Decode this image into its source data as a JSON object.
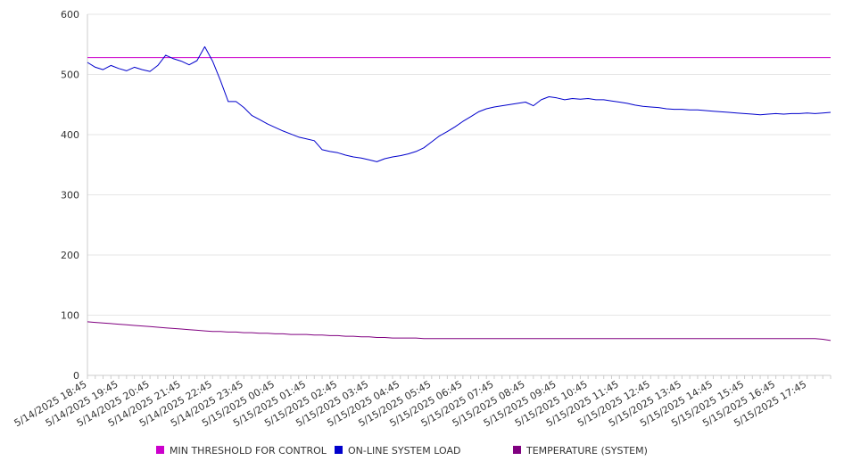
{
  "chart_data": {
    "type": "line",
    "ylim": [
      0,
      600
    ],
    "yticks": [
      0,
      100,
      200,
      300,
      400,
      500,
      600
    ],
    "grid": true,
    "legend_position": "bottom",
    "x_tick_labels": [
      "5/14/2025 18:45",
      "5/14/2025 19:45",
      "5/14/2025 20:45",
      "5/14/2025 21:45",
      "5/14/2025 22:45",
      "5/14/2025 23:45",
      "5/15/2025 00:45",
      "5/15/2025 01:45",
      "5/15/2025 02:45",
      "5/15/2025 03:45",
      "5/15/2025 04:45",
      "5/15/2025 05:45",
      "5/15/2025 06:45",
      "5/15/2025 07:45",
      "5/15/2025 08:45",
      "5/15/2025 09:45",
      "5/15/2025 10:45",
      "5/15/2025 11:45",
      "5/15/2025 12:45",
      "5/15/2025 13:45",
      "5/15/2025 14:45",
      "5/15/2025 15:45",
      "5/15/2025 16:45",
      "5/15/2025 17:45"
    ],
    "x_start": "5/14/2025 18:45",
    "x_interval_minutes": 15,
    "series": [
      {
        "name": "MIN THRESHOLD FOR CONTROL",
        "color": "#cc00cc",
        "values": [
          528,
          528,
          528,
          528,
          528,
          528,
          528,
          528,
          528,
          528,
          528,
          528,
          528,
          528,
          528,
          528,
          528,
          528,
          528,
          528,
          528,
          528,
          528,
          528,
          528,
          528,
          528,
          528,
          528,
          528,
          528,
          528,
          528,
          528,
          528,
          528,
          528,
          528,
          528,
          528,
          528,
          528,
          528,
          528,
          528,
          528,
          528,
          528,
          528,
          528,
          528,
          528,
          528,
          528,
          528,
          528,
          528,
          528,
          528,
          528,
          528,
          528,
          528,
          528,
          528,
          528,
          528,
          528,
          528,
          528,
          528,
          528,
          528,
          528,
          528,
          528,
          528,
          528,
          528,
          528,
          528,
          528,
          528,
          528,
          528,
          528,
          528,
          528,
          528,
          528,
          528,
          528,
          528,
          528,
          528,
          528
        ]
      },
      {
        "name": "ON-LINE SYSTEM LOAD",
        "color": "#0000cc",
        "values": [
          520,
          512,
          508,
          515,
          510,
          506,
          512,
          508,
          505,
          515,
          532,
          526,
          522,
          516,
          523,
          546,
          522,
          490,
          455,
          455,
          445,
          432,
          425,
          418,
          412,
          406,
          401,
          396,
          393,
          390,
          375,
          372,
          370,
          366,
          363,
          361,
          358,
          355,
          360,
          363,
          365,
          368,
          372,
          378,
          388,
          398,
          405,
          413,
          422,
          430,
          438,
          443,
          446,
          448,
          450,
          452,
          454,
          448,
          458,
          463,
          461,
          458,
          460,
          459,
          460,
          458,
          458,
          456,
          454,
          452,
          449,
          447,
          446,
          445,
          443,
          442,
          442,
          441,
          441,
          440,
          439,
          438,
          437,
          436,
          435,
          434,
          433,
          434,
          435,
          434,
          435,
          435,
          436,
          435,
          436,
          437
        ]
      },
      {
        "name": "TEMPERATURE (SYSTEM)",
        "color": "#800080",
        "values": [
          89,
          88,
          87,
          86,
          85,
          84,
          83,
          82,
          81,
          80,
          79,
          78,
          77,
          76,
          75,
          74,
          73,
          73,
          72,
          72,
          71,
          71,
          70,
          70,
          69,
          69,
          68,
          68,
          68,
          67,
          67,
          66,
          66,
          65,
          65,
          64,
          64,
          63,
          63,
          62,
          62,
          62,
          62,
          61,
          61,
          61,
          61,
          61,
          61,
          61,
          61,
          61,
          61,
          61,
          61,
          61,
          61,
          61,
          61,
          61,
          61,
          61,
          61,
          61,
          61,
          61,
          61,
          61,
          61,
          61,
          61,
          61,
          61,
          61,
          61,
          61,
          61,
          61,
          61,
          61,
          61,
          61,
          61,
          61,
          61,
          61,
          61,
          61,
          61,
          61,
          61,
          61,
          61,
          61,
          60,
          58
        ]
      }
    ]
  }
}
